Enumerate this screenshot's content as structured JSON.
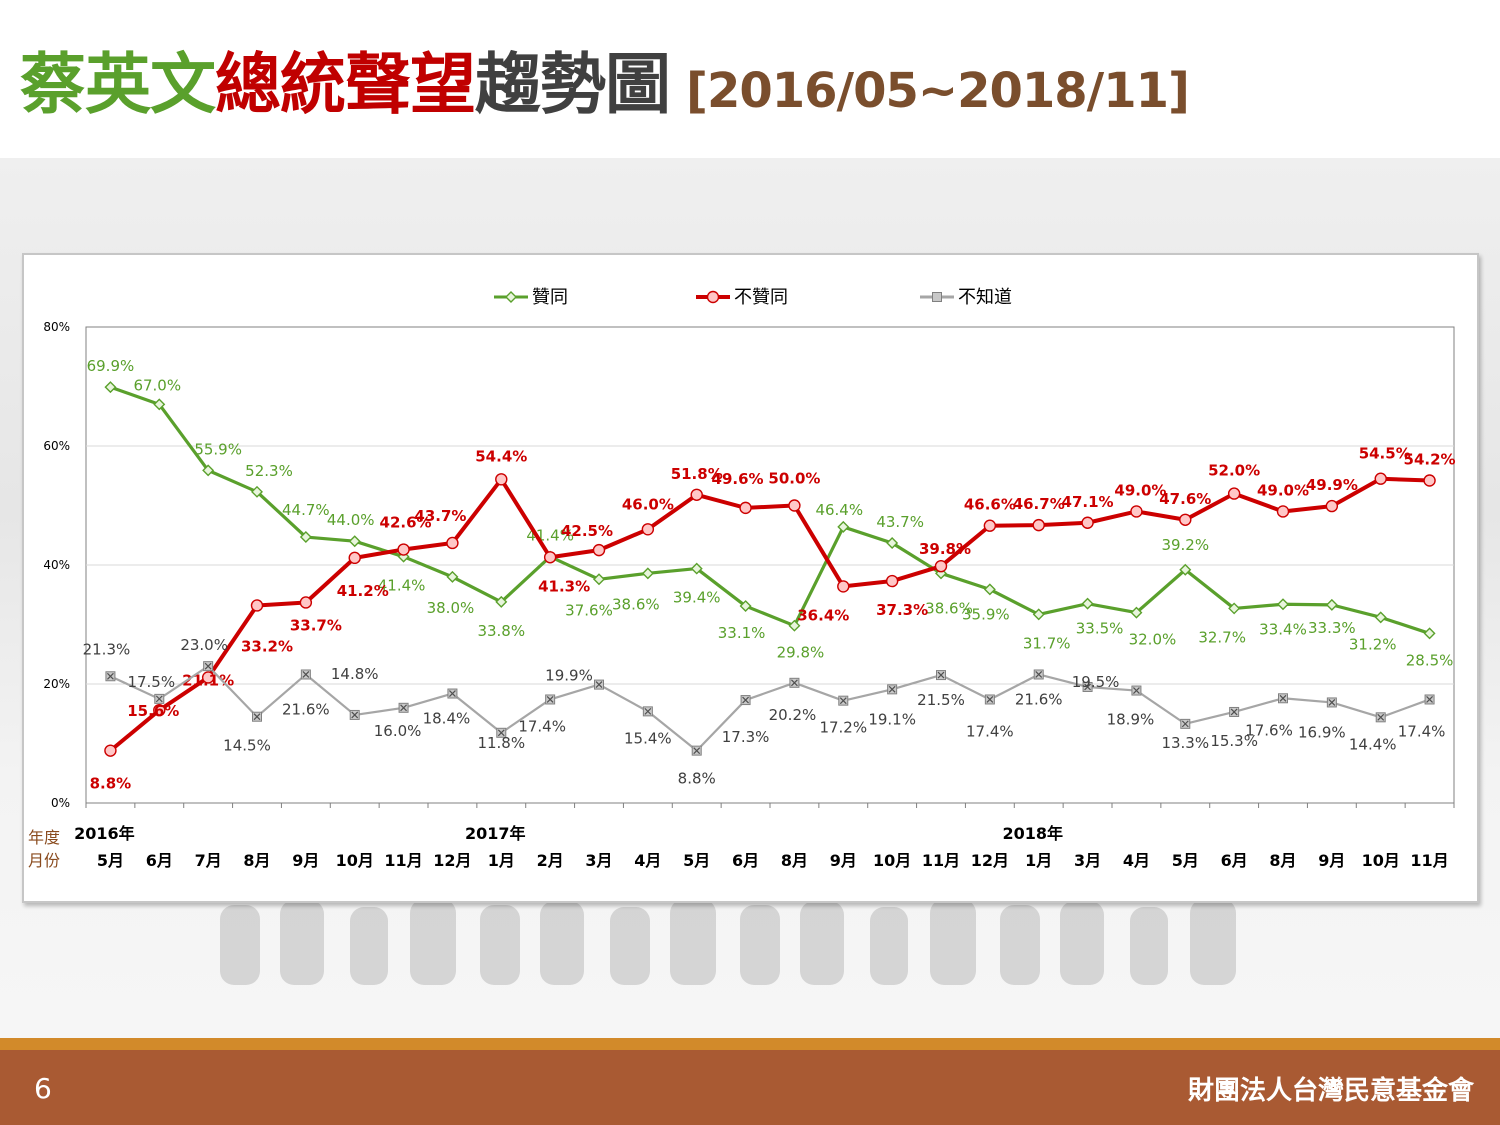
{
  "title": {
    "parts": [
      {
        "text": "蔡英文",
        "color": "#5aa02c"
      },
      {
        "text": "總統聲望",
        "color": "#c00000"
      },
      {
        "text": "趨勢圖",
        "color": "#404040"
      }
    ],
    "range": "[2016/05~2018/11]",
    "range_color": "#7a4e2d"
  },
  "footer": {
    "page_number": "6",
    "organization": "財團法人台灣民意基金會"
  },
  "chart_data": {
    "type": "line",
    "ylim": [
      0,
      80
    ],
    "yticks": [
      "0%",
      "20%",
      "40%",
      "60%",
      "80%"
    ],
    "ytick_values": [
      0,
      20,
      40,
      60,
      80
    ],
    "legend_position": "top",
    "categories": [
      "5月",
      "6月",
      "7月",
      "8月",
      "9月",
      "10月",
      "11月",
      "12月",
      "1月",
      "2月",
      "3月",
      "4月",
      "5月",
      "6月",
      "8月",
      "9月",
      "10月",
      "11月",
      "12月",
      "1月",
      "3月",
      "4月",
      "5月",
      "6月",
      "8月",
      "9月",
      "10月",
      "11月"
    ],
    "row_labels": {
      "year": "年度",
      "month": "月份"
    },
    "years": [
      {
        "label": "2016年",
        "index": 0
      },
      {
        "label": "2017年",
        "index": 8
      },
      {
        "label": "2018年",
        "index": 19
      }
    ],
    "series": [
      {
        "name": "贊同",
        "color": "#5aa02c",
        "marker": "diamond",
        "values": [
          69.9,
          67.0,
          55.9,
          52.3,
          44.7,
          44.0,
          41.4,
          38.0,
          33.8,
          41.4,
          37.6,
          38.6,
          39.4,
          33.1,
          29.8,
          46.4,
          43.7,
          38.6,
          35.9,
          31.7,
          33.5,
          32.0,
          39.2,
          32.7,
          33.4,
          33.3,
          31.2,
          28.5
        ],
        "labels": [
          "69.9%",
          "67.0%",
          "55.9%",
          "52.3%",
          "44.7%",
          "44.0%",
          "41.4%",
          "38.0%",
          "33.8%",
          "41.4%",
          "37.6%",
          "38.6%",
          "39.4%",
          "33.1%",
          "29.8%",
          "46.4%",
          "43.7%",
          "38.6%",
          "35.9%",
          "31.7%",
          "33.5%",
          "32.0%",
          "39.2%",
          "32.7%",
          "33.4%",
          "33.3%",
          "31.2%",
          "28.5%"
        ]
      },
      {
        "name": "不贊同",
        "color": "#cc0000",
        "marker": "circle",
        "values": [
          8.8,
          15.6,
          21.1,
          33.2,
          33.7,
          41.2,
          42.6,
          43.7,
          54.4,
          41.3,
          42.5,
          46.0,
          51.8,
          49.6,
          50.0,
          36.4,
          37.3,
          39.8,
          46.6,
          46.7,
          47.1,
          49.0,
          47.6,
          52.0,
          49.0,
          49.9,
          54.5,
          54.2
        ],
        "labels": [
          "8.8%",
          "15.6%",
          "21.1%",
          "33.2%",
          "33.7%",
          "41.2%",
          "42.6%",
          "43.7%",
          "54.4%",
          "41.3%",
          "42.5%",
          "46.0%",
          "51.8%",
          "49.6%",
          "50.0%",
          "36.4%",
          "37.3%",
          "39.8%",
          "46.6%",
          "46.7%",
          "47.1%",
          "49.0%",
          "47.6%",
          "52.0%",
          "49.0%",
          "49.9%",
          "54.5%",
          "54.2%"
        ]
      },
      {
        "name": "不知道",
        "color": "#a6a6a6",
        "marker": "x-square",
        "values": [
          21.3,
          17.5,
          23.0,
          14.5,
          21.6,
          14.8,
          16.0,
          18.4,
          11.8,
          17.4,
          19.9,
          15.4,
          8.8,
          17.3,
          20.2,
          17.2,
          19.1,
          21.5,
          17.4,
          21.6,
          19.5,
          18.9,
          13.3,
          15.3,
          17.6,
          16.9,
          14.4,
          17.4
        ],
        "labels": [
          "21.3%",
          "17.5%",
          "23.0%",
          "14.5%",
          "21.6%",
          "14.8%",
          "16.0%",
          "18.4%",
          "11.8%",
          "17.4%",
          "19.9%",
          "15.4%",
          "8.8%",
          "17.3%",
          "20.2%",
          "17.2%",
          "19.1%",
          "21.5%",
          "17.4%",
          "21.6%",
          "19.5%",
          "18.9%",
          "13.3%",
          "15.3%",
          "17.6%",
          "16.9%",
          "14.4%",
          "17.4%"
        ]
      }
    ]
  }
}
